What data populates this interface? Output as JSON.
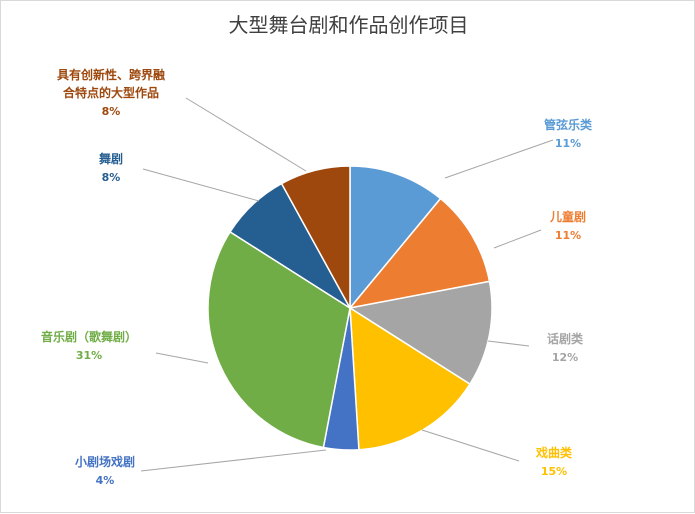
{
  "chart_data": {
    "type": "pie",
    "title": "大型舞台剧和作品创作项目",
    "slices": [
      {
        "label": "管弦乐类",
        "value": 11,
        "pct_label": "11%",
        "color": "#5B9BD5"
      },
      {
        "label": "儿童剧",
        "value": 11,
        "pct_label": "11%",
        "color": "#ED7D31"
      },
      {
        "label": "话剧类",
        "value": 12,
        "pct_label": "12%",
        "color": "#A5A5A5"
      },
      {
        "label": "戏曲类",
        "value": 15,
        "pct_label": "15%",
        "color": "#FFC000"
      },
      {
        "label": "小剧场戏剧",
        "value": 4,
        "pct_label": "4%",
        "color": "#4472C4"
      },
      {
        "label": "音乐剧（歌舞剧）",
        "value": 31,
        "pct_label": "31%",
        "color": "#70AD47"
      },
      {
        "label": "舞剧",
        "value": 8,
        "pct_label": "8%",
        "color": "#255E91"
      },
      {
        "label": "具有创新性、跨界融合特点的大型作品",
        "value": 8,
        "pct_label": "8%",
        "color": "#9E480E"
      }
    ],
    "legend": "none",
    "data_labels": "outside-with-leader-lines"
  }
}
